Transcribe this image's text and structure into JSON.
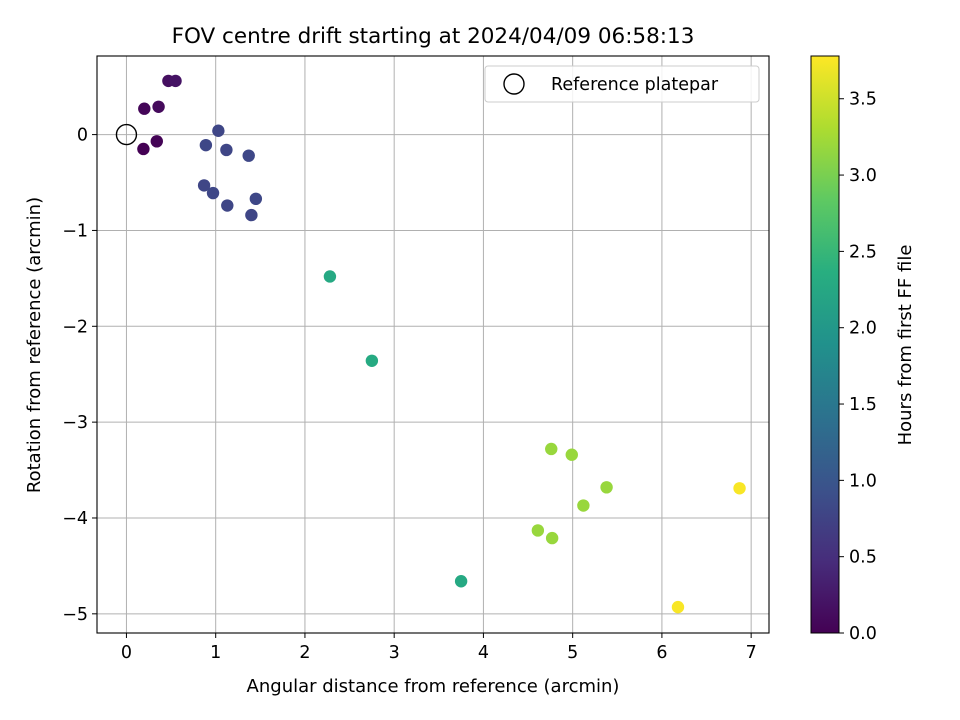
{
  "chart_data": {
    "type": "scatter",
    "title": "FOV centre drift starting at 2024/04/09 06:58:13",
    "xlabel": "Angular distance from reference (arcmin)",
    "ylabel": "Rotation from reference (arcmin)",
    "xlim": [
      -0.33,
      7.2
    ],
    "ylim": [
      -5.2,
      0.82
    ],
    "xticks": [
      0,
      1,
      2,
      3,
      4,
      5,
      6,
      7
    ],
    "yticks": [
      0,
      -1,
      -2,
      -3,
      -4,
      -5
    ],
    "xtick_labels": [
      "0",
      "1",
      "2",
      "3",
      "4",
      "5",
      "6",
      "7"
    ],
    "ytick_labels": [
      "0",
      "−1",
      "−2",
      "−3",
      "−4",
      "−5"
    ],
    "grid": true,
    "legend": {
      "entries": [
        "Reference platepar"
      ],
      "placement": "top-right"
    },
    "reference_point": {
      "name": "Reference platepar",
      "x": 0,
      "y": 0,
      "marker": "open-circle"
    },
    "colorbar": {
      "label": "Hours from first FF file",
      "colormap": "viridis",
      "range": [
        0.0,
        3.78
      ],
      "ticks": [
        0.0,
        0.5,
        1.0,
        1.5,
        2.0,
        2.5,
        3.0,
        3.5
      ],
      "tick_labels": [
        "0.0",
        "0.5",
        "1.0",
        "1.5",
        "2.0",
        "2.5",
        "3.0",
        "3.5"
      ]
    },
    "points": [
      {
        "x": 0.47,
        "y": 0.56,
        "hours": 0.15
      },
      {
        "x": 0.55,
        "y": 0.56,
        "hours": 0.2
      },
      {
        "x": 0.2,
        "y": 0.27,
        "hours": 0.05
      },
      {
        "x": 0.36,
        "y": 0.29,
        "hours": 0.1
      },
      {
        "x": 0.19,
        "y": -0.15,
        "hours": 0.0
      },
      {
        "x": 0.34,
        "y": -0.07,
        "hours": 0.03
      },
      {
        "x": 1.03,
        "y": 0.04,
        "hours": 0.8
      },
      {
        "x": 0.89,
        "y": -0.11,
        "hours": 0.82
      },
      {
        "x": 1.12,
        "y": -0.16,
        "hours": 0.8
      },
      {
        "x": 1.37,
        "y": -0.22,
        "hours": 0.82
      },
      {
        "x": 0.87,
        "y": -0.53,
        "hours": 0.8
      },
      {
        "x": 0.97,
        "y": -0.61,
        "hours": 0.82
      },
      {
        "x": 1.13,
        "y": -0.74,
        "hours": 0.8
      },
      {
        "x": 1.45,
        "y": -0.67,
        "hours": 0.82
      },
      {
        "x": 1.4,
        "y": -0.84,
        "hours": 0.8
      },
      {
        "x": 2.28,
        "y": -1.48,
        "hours": 2.3
      },
      {
        "x": 2.75,
        "y": -2.36,
        "hours": 2.32
      },
      {
        "x": 3.75,
        "y": -4.66,
        "hours": 2.3
      },
      {
        "x": 4.76,
        "y": -3.28,
        "hours": 3.2
      },
      {
        "x": 4.99,
        "y": -3.34,
        "hours": 3.2
      },
      {
        "x": 5.38,
        "y": -3.68,
        "hours": 3.2
      },
      {
        "x": 5.12,
        "y": -3.87,
        "hours": 3.2
      },
      {
        "x": 4.61,
        "y": -4.13,
        "hours": 3.2
      },
      {
        "x": 4.77,
        "y": -4.21,
        "hours": 3.2
      },
      {
        "x": 6.87,
        "y": -3.69,
        "hours": 3.75
      },
      {
        "x": 6.18,
        "y": -4.93,
        "hours": 3.75
      }
    ]
  }
}
